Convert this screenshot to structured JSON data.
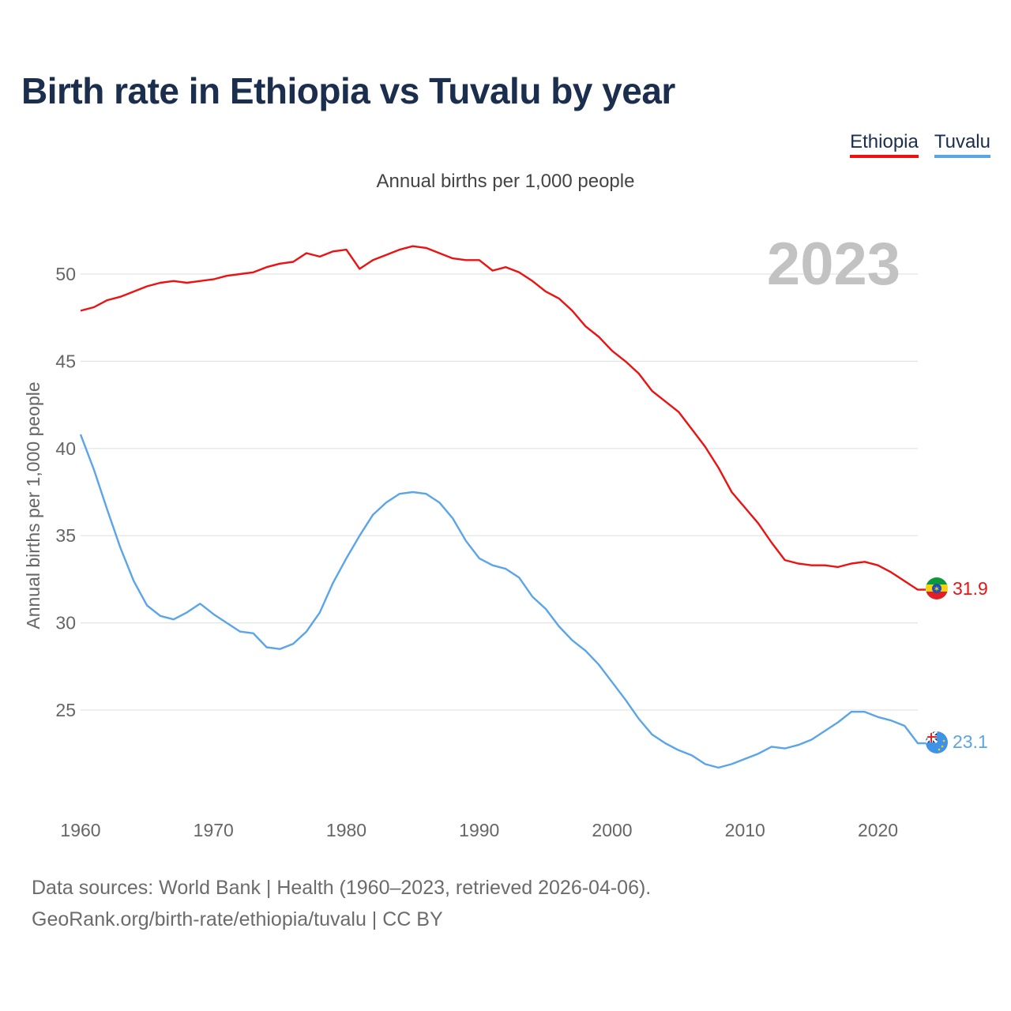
{
  "title": "Birth rate in Ethiopia vs Tuvalu by year",
  "legend": [
    {
      "label": "Ethiopia",
      "color": "#ee1111"
    },
    {
      "label": "Tuvalu",
      "color": "#5aa5e8"
    }
  ],
  "chart_data": {
    "type": "line",
    "title": "Birth rate in Ethiopia vs Tuvalu by year",
    "subtitle": "Annual births per 1,000 people",
    "ylabel": "Annual births per 1,000 people",
    "xlabel": "",
    "year_label": "2023",
    "ylim": [
      20,
      53
    ],
    "xlim": [
      1960,
      2023
    ],
    "yticks": [
      25,
      30,
      35,
      40,
      45,
      50
    ],
    "xticks": [
      1960,
      1970,
      1980,
      1990,
      2000,
      2010,
      2020
    ],
    "grid": true,
    "x": [
      1960,
      1961,
      1962,
      1963,
      1964,
      1965,
      1966,
      1967,
      1968,
      1969,
      1970,
      1971,
      1972,
      1973,
      1974,
      1975,
      1976,
      1977,
      1978,
      1979,
      1980,
      1981,
      1982,
      1983,
      1984,
      1985,
      1986,
      1987,
      1988,
      1989,
      1990,
      1991,
      1992,
      1993,
      1994,
      1995,
      1996,
      1997,
      1998,
      1999,
      2000,
      2001,
      2002,
      2003,
      2004,
      2005,
      2006,
      2007,
      2008,
      2009,
      2010,
      2011,
      2012,
      2013,
      2014,
      2015,
      2016,
      2017,
      2018,
      2019,
      2020,
      2021,
      2022,
      2023
    ],
    "series": [
      {
        "name": "Ethiopia",
        "color": "#ee1111",
        "end_label": "31.9",
        "values": [
          47.9,
          48.1,
          48.5,
          48.7,
          49.0,
          49.3,
          49.5,
          49.6,
          49.5,
          49.6,
          49.7,
          49.9,
          50.0,
          50.1,
          50.4,
          50.6,
          50.7,
          51.2,
          51.0,
          51.3,
          51.4,
          50.3,
          50.8,
          51.1,
          51.4,
          51.6,
          51.5,
          51.2,
          50.9,
          50.8,
          50.8,
          50.2,
          50.4,
          50.1,
          49.6,
          49.0,
          48.6,
          47.9,
          47.0,
          46.4,
          45.6,
          45.0,
          44.3,
          43.3,
          42.7,
          42.1,
          41.1,
          40.1,
          38.9,
          37.5,
          36.6,
          35.7,
          34.6,
          33.6,
          33.4,
          33.3,
          33.3,
          33.2,
          33.4,
          33.5,
          33.3,
          32.9,
          32.4,
          31.9
        ]
      },
      {
        "name": "Tuvalu",
        "color": "#5aa5e8",
        "end_label": "23.1",
        "values": [
          40.8,
          38.8,
          36.5,
          34.3,
          32.4,
          31.0,
          30.4,
          30.2,
          30.6,
          31.1,
          30.5,
          30.0,
          29.5,
          29.4,
          28.6,
          28.5,
          28.8,
          29.5,
          30.6,
          32.3,
          33.7,
          35.0,
          36.2,
          36.9,
          37.4,
          37.5,
          37.4,
          36.9,
          36.0,
          34.7,
          33.7,
          33.3,
          33.1,
          32.6,
          31.5,
          30.8,
          29.8,
          29.0,
          28.4,
          27.6,
          26.6,
          25.6,
          24.5,
          23.6,
          23.1,
          22.7,
          22.4,
          21.9,
          21.7,
          21.9,
          22.2,
          22.5,
          22.9,
          22.8,
          23.0,
          23.3,
          23.8,
          24.3,
          24.9,
          24.9,
          24.6,
          24.4,
          24.1,
          23.1
        ]
      }
    ]
  },
  "footer": {
    "line1": "Data sources: World Bank | Health (1960–2023, retrieved 2026-04-06).",
    "line2": "GeoRank.org/birth-rate/ethiopia/tuvalu | CC BY"
  }
}
